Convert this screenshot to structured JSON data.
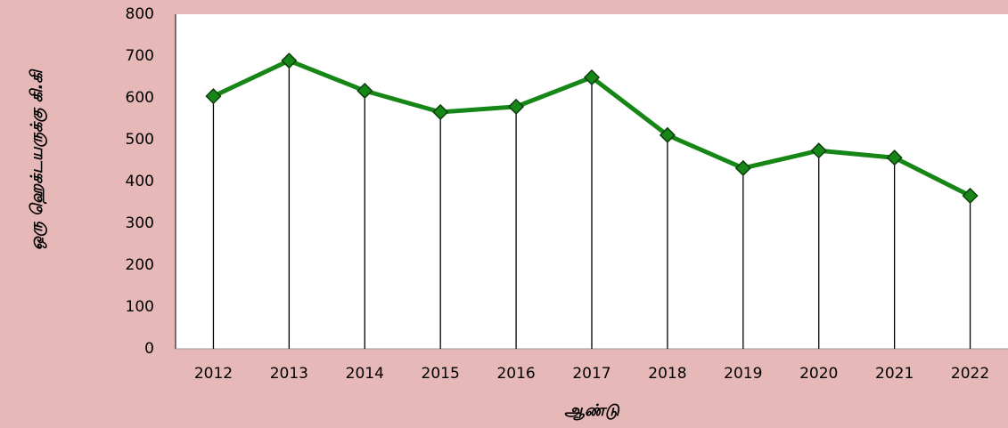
{
  "chart_data": {
    "type": "line",
    "categories": [
      "2012",
      "2013",
      "2014",
      "2015",
      "2016",
      "2017",
      "2018",
      "2019",
      "2020",
      "2021",
      "2022"
    ],
    "series": [
      {
        "color": "#168616",
        "values": [
          604,
          689,
          617,
          566,
          579,
          649,
          511,
          432,
          474,
          457,
          366
        ]
      }
    ],
    "ylim": [
      0,
      800
    ],
    "yticks": [
      0,
      100,
      200,
      300,
      400,
      500,
      600,
      700,
      800
    ],
    "x_label": "ஆண்டு",
    "y_label": "ஒரு ஹெக்டயருக்கு கி.கி",
    "drop_lines": true,
    "grid": false
  }
}
